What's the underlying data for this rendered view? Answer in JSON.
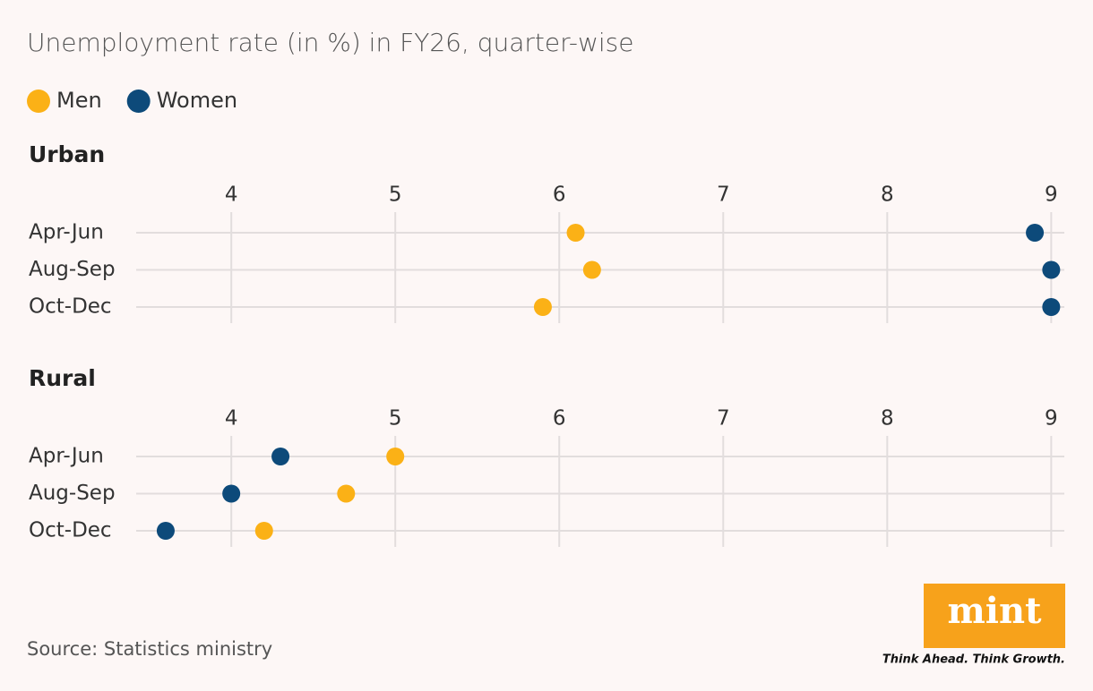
{
  "title": "Unemployment rate (in %) in FY26, quarter-wise",
  "source": "Source: Statistics ministry",
  "logo": {
    "text": "mint",
    "tagline": "Think Ahead. Think Growth."
  },
  "chart_data": [
    {
      "type": "dot",
      "title": "Urban",
      "categories": [
        "Apr-Jun",
        "Aug-Sep",
        "Oct-Dec"
      ],
      "series": [
        {
          "name": "Men",
          "color": "#fbb116",
          "values": [
            6.1,
            6.2,
            5.9
          ]
        },
        {
          "name": "Women",
          "color": "#0d4a7a",
          "values": [
            8.9,
            9.0,
            9.0
          ]
        }
      ],
      "xlim": [
        3.42,
        9.08
      ],
      "xticks": [
        4,
        5,
        6,
        7,
        8,
        9
      ],
      "grid": true
    },
    {
      "type": "dot",
      "title": "Rural",
      "categories": [
        "Apr-Jun",
        "Aug-Sep",
        "Oct-Dec"
      ],
      "series": [
        {
          "name": "Men",
          "color": "#fbb116",
          "values": [
            5.0,
            4.7,
            4.2
          ]
        },
        {
          "name": "Women",
          "color": "#0d4a7a",
          "values": [
            4.3,
            4.0,
            3.6
          ]
        }
      ],
      "xlim": [
        3.42,
        9.08
      ],
      "xticks": [
        4,
        5,
        6,
        7,
        8,
        9
      ],
      "grid": true
    }
  ]
}
